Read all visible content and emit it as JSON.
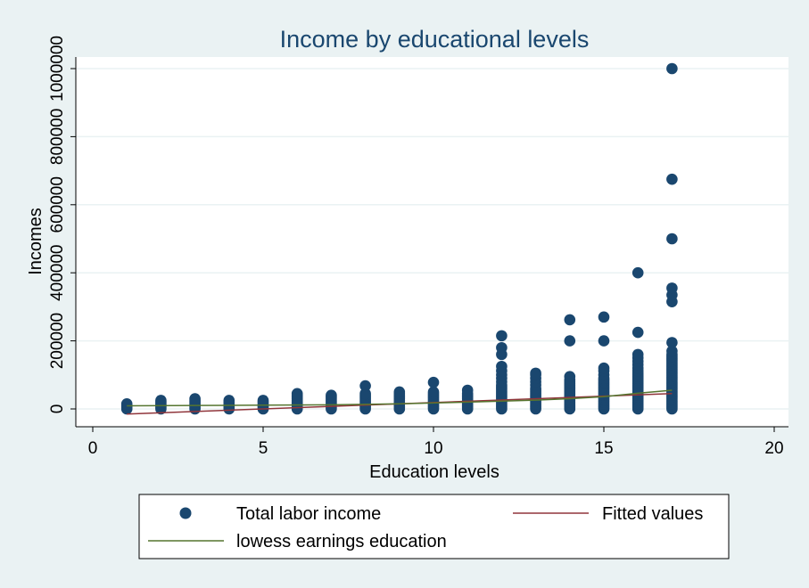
{
  "chart_data": {
    "type": "scatter",
    "title": "Income by educational levels",
    "xlabel": "Education levels",
    "ylabel": "Incomes",
    "xlim": [
      0,
      20
    ],
    "ylim": [
      0,
      1000000
    ],
    "xticks": [
      0,
      5,
      10,
      15,
      20
    ],
    "yticks": [
      0,
      200000,
      400000,
      600000,
      800000,
      1000000
    ],
    "xtick_labels": [
      "0",
      "5",
      "10",
      "15",
      "20"
    ],
    "ytick_labels": [
      "0",
      "200000",
      "400000",
      "600000",
      "800000",
      "1000000"
    ],
    "grid": true,
    "legend_position": "bottom",
    "colors": {
      "scatter": "#1a476f",
      "fitted": "#90353b",
      "lowess": "#55752f",
      "plot_bg": "#ffffff",
      "page_bg": "#eaf2f3",
      "grid": "#eaf2f3",
      "title": "#1a476f"
    },
    "series": [
      {
        "name": "Total labor income",
        "kind": "scatter",
        "points": [
          [
            1,
            0
          ],
          [
            1,
            5000
          ],
          [
            1,
            10000
          ],
          [
            1,
            15000
          ],
          [
            2,
            0
          ],
          [
            2,
            5000
          ],
          [
            2,
            10000
          ],
          [
            2,
            15000
          ],
          [
            2,
            20000
          ],
          [
            2,
            25000
          ],
          [
            3,
            0
          ],
          [
            3,
            5000
          ],
          [
            3,
            10000
          ],
          [
            3,
            15000
          ],
          [
            3,
            20000
          ],
          [
            3,
            25000
          ],
          [
            3,
            30000
          ],
          [
            4,
            0
          ],
          [
            4,
            5000
          ],
          [
            4,
            10000
          ],
          [
            4,
            15000
          ],
          [
            4,
            20000
          ],
          [
            4,
            25000
          ],
          [
            5,
            0
          ],
          [
            5,
            5000
          ],
          [
            5,
            10000
          ],
          [
            5,
            15000
          ],
          [
            5,
            20000
          ],
          [
            5,
            25000
          ],
          [
            6,
            0
          ],
          [
            6,
            5000
          ],
          [
            6,
            10000
          ],
          [
            6,
            15000
          ],
          [
            6,
            20000
          ],
          [
            6,
            25000
          ],
          [
            6,
            30000
          ],
          [
            6,
            35000
          ],
          [
            6,
            40000
          ],
          [
            6,
            45000
          ],
          [
            7,
            0
          ],
          [
            7,
            5000
          ],
          [
            7,
            10000
          ],
          [
            7,
            15000
          ],
          [
            7,
            20000
          ],
          [
            7,
            25000
          ],
          [
            7,
            30000
          ],
          [
            7,
            35000
          ],
          [
            7,
            40000
          ],
          [
            8,
            0
          ],
          [
            8,
            5000
          ],
          [
            8,
            10000
          ],
          [
            8,
            15000
          ],
          [
            8,
            20000
          ],
          [
            8,
            25000
          ],
          [
            8,
            30000
          ],
          [
            8,
            35000
          ],
          [
            8,
            40000
          ],
          [
            8,
            45000
          ],
          [
            8,
            68000
          ],
          [
            9,
            0
          ],
          [
            9,
            5000
          ],
          [
            9,
            10000
          ],
          [
            9,
            15000
          ],
          [
            9,
            20000
          ],
          [
            9,
            25000
          ],
          [
            9,
            30000
          ],
          [
            9,
            35000
          ],
          [
            9,
            40000
          ],
          [
            9,
            45000
          ],
          [
            9,
            50000
          ],
          [
            10,
            0
          ],
          [
            10,
            5000
          ],
          [
            10,
            10000
          ],
          [
            10,
            15000
          ],
          [
            10,
            20000
          ],
          [
            10,
            25000
          ],
          [
            10,
            30000
          ],
          [
            10,
            35000
          ],
          [
            10,
            40000
          ],
          [
            10,
            45000
          ],
          [
            10,
            50000
          ],
          [
            10,
            78000
          ],
          [
            11,
            0
          ],
          [
            11,
            5000
          ],
          [
            11,
            10000
          ],
          [
            11,
            15000
          ],
          [
            11,
            20000
          ],
          [
            11,
            25000
          ],
          [
            11,
            30000
          ],
          [
            11,
            35000
          ],
          [
            11,
            40000
          ],
          [
            11,
            45000
          ],
          [
            11,
            55000
          ],
          [
            12,
            0
          ],
          [
            12,
            5000
          ],
          [
            12,
            10000
          ],
          [
            12,
            15000
          ],
          [
            12,
            20000
          ],
          [
            12,
            25000
          ],
          [
            12,
            30000
          ],
          [
            12,
            35000
          ],
          [
            12,
            40000
          ],
          [
            12,
            45000
          ],
          [
            12,
            50000
          ],
          [
            12,
            55000
          ],
          [
            12,
            60000
          ],
          [
            12,
            65000
          ],
          [
            12,
            70000
          ],
          [
            12,
            80000
          ],
          [
            12,
            90000
          ],
          [
            12,
            100000
          ],
          [
            12,
            112000
          ],
          [
            12,
            125000
          ],
          [
            12,
            160000
          ],
          [
            12,
            180000
          ],
          [
            12,
            215000
          ],
          [
            13,
            0
          ],
          [
            13,
            5000
          ],
          [
            13,
            10000
          ],
          [
            13,
            15000
          ],
          [
            13,
            20000
          ],
          [
            13,
            25000
          ],
          [
            13,
            30000
          ],
          [
            13,
            35000
          ],
          [
            13,
            40000
          ],
          [
            13,
            45000
          ],
          [
            13,
            50000
          ],
          [
            13,
            55000
          ],
          [
            13,
            60000
          ],
          [
            13,
            70000
          ],
          [
            13,
            80000
          ],
          [
            13,
            90000
          ],
          [
            13,
            100000
          ],
          [
            13,
            105000
          ],
          [
            14,
            0
          ],
          [
            14,
            5000
          ],
          [
            14,
            10000
          ],
          [
            14,
            15000
          ],
          [
            14,
            20000
          ],
          [
            14,
            25000
          ],
          [
            14,
            30000
          ],
          [
            14,
            35000
          ],
          [
            14,
            40000
          ],
          [
            14,
            45000
          ],
          [
            14,
            50000
          ],
          [
            14,
            55000
          ],
          [
            14,
            60000
          ],
          [
            14,
            65000
          ],
          [
            14,
            70000
          ],
          [
            14,
            75000
          ],
          [
            14,
            80000
          ],
          [
            14,
            85000
          ],
          [
            14,
            95000
          ],
          [
            14,
            200000
          ],
          [
            14,
            262000
          ],
          [
            15,
            0
          ],
          [
            15,
            5000
          ],
          [
            15,
            10000
          ],
          [
            15,
            15000
          ],
          [
            15,
            20000
          ],
          [
            15,
            25000
          ],
          [
            15,
            30000
          ],
          [
            15,
            35000
          ],
          [
            15,
            40000
          ],
          [
            15,
            45000
          ],
          [
            15,
            50000
          ],
          [
            15,
            55000
          ],
          [
            15,
            60000
          ],
          [
            15,
            65000
          ],
          [
            15,
            70000
          ],
          [
            15,
            75000
          ],
          [
            15,
            80000
          ],
          [
            15,
            85000
          ],
          [
            15,
            90000
          ],
          [
            15,
            100000
          ],
          [
            15,
            112000
          ],
          [
            15,
            120000
          ],
          [
            15,
            200000
          ],
          [
            15,
            270000
          ],
          [
            16,
            0
          ],
          [
            16,
            5000
          ],
          [
            16,
            10000
          ],
          [
            16,
            15000
          ],
          [
            16,
            20000
          ],
          [
            16,
            25000
          ],
          [
            16,
            30000
          ],
          [
            16,
            35000
          ],
          [
            16,
            40000
          ],
          [
            16,
            45000
          ],
          [
            16,
            50000
          ],
          [
            16,
            55000
          ],
          [
            16,
            60000
          ],
          [
            16,
            65000
          ],
          [
            16,
            70000
          ],
          [
            16,
            75000
          ],
          [
            16,
            80000
          ],
          [
            16,
            85000
          ],
          [
            16,
            90000
          ],
          [
            16,
            95000
          ],
          [
            16,
            100000
          ],
          [
            16,
            105000
          ],
          [
            16,
            112000
          ],
          [
            16,
            120000
          ],
          [
            16,
            130000
          ],
          [
            16,
            140000
          ],
          [
            16,
            150000
          ],
          [
            16,
            160000
          ],
          [
            16,
            225000
          ],
          [
            16,
            400000
          ],
          [
            17,
            0
          ],
          [
            17,
            5000
          ],
          [
            17,
            10000
          ],
          [
            17,
            15000
          ],
          [
            17,
            20000
          ],
          [
            17,
            25000
          ],
          [
            17,
            30000
          ],
          [
            17,
            35000
          ],
          [
            17,
            40000
          ],
          [
            17,
            45000
          ],
          [
            17,
            50000
          ],
          [
            17,
            55000
          ],
          [
            17,
            60000
          ],
          [
            17,
            65000
          ],
          [
            17,
            70000
          ],
          [
            17,
            75000
          ],
          [
            17,
            80000
          ],
          [
            17,
            85000
          ],
          [
            17,
            90000
          ],
          [
            17,
            95000
          ],
          [
            17,
            100000
          ],
          [
            17,
            105000
          ],
          [
            17,
            110000
          ],
          [
            17,
            115000
          ],
          [
            17,
            120000
          ],
          [
            17,
            125000
          ],
          [
            17,
            130000
          ],
          [
            17,
            135000
          ],
          [
            17,
            140000
          ],
          [
            17,
            145000
          ],
          [
            17,
            150000
          ],
          [
            17,
            155000
          ],
          [
            17,
            160000
          ],
          [
            17,
            170000
          ],
          [
            17,
            195000
          ],
          [
            17,
            315000
          ],
          [
            17,
            335000
          ],
          [
            17,
            355000
          ],
          [
            17,
            500000
          ],
          [
            17,
            675000
          ],
          [
            17,
            1000000
          ]
        ]
      },
      {
        "name": "Fitted values",
        "kind": "line",
        "points": [
          [
            1,
            -15000
          ],
          [
            17,
            45000
          ]
        ]
      },
      {
        "name": "lowess earnings education",
        "kind": "line",
        "points": [
          [
            1,
            9000
          ],
          [
            3,
            10000
          ],
          [
            5,
            11000
          ],
          [
            7,
            12000
          ],
          [
            9,
            15000
          ],
          [
            11,
            20000
          ],
          [
            12,
            23000
          ],
          [
            13,
            26000
          ],
          [
            14,
            30000
          ],
          [
            15,
            36000
          ],
          [
            16,
            46000
          ],
          [
            17,
            55000
          ]
        ]
      }
    ]
  }
}
